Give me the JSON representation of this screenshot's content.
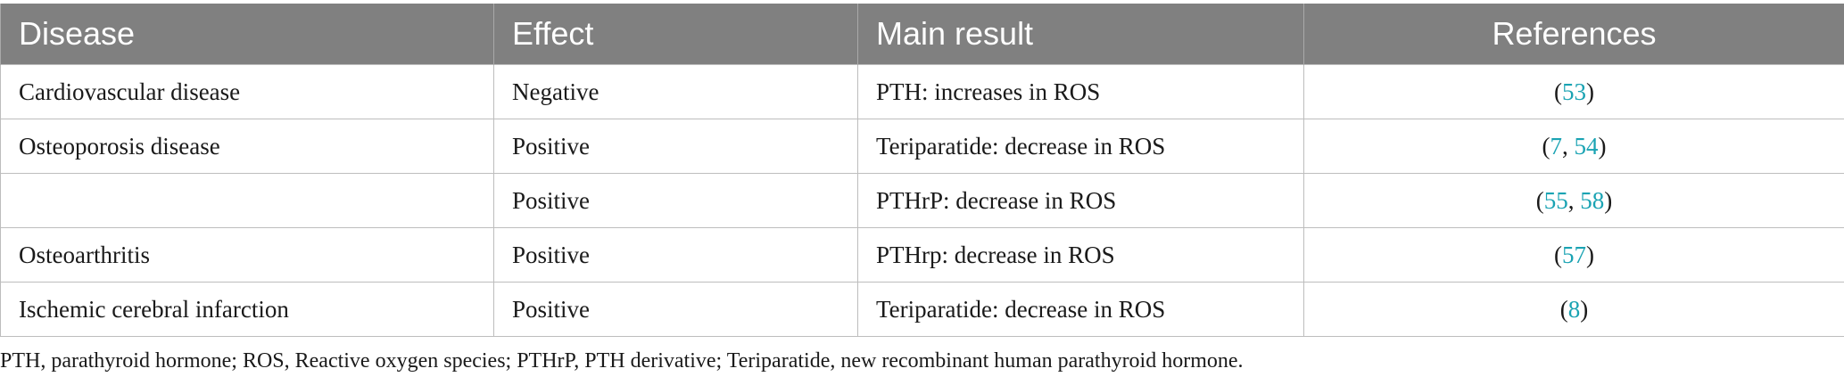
{
  "table": {
    "headers": [
      "Disease",
      "Effect",
      "Main result",
      "References"
    ],
    "rows": [
      {
        "disease": "Cardiovascular disease",
        "effect": "Negative",
        "result": "PTH: increases in ROS",
        "refs": [
          "53"
        ]
      },
      {
        "disease": "Osteoporosis disease",
        "effect": "Positive",
        "result": "Teriparatide: decrease in ROS",
        "refs": [
          "7",
          "54"
        ]
      },
      {
        "disease": "",
        "effect": "Positive",
        "result": "PTHrP: decrease in ROS",
        "refs": [
          "55",
          "58"
        ]
      },
      {
        "disease": "Osteoarthritis",
        "effect": "Positive",
        "result": "PTHrp: decrease in ROS",
        "refs": [
          "57"
        ]
      },
      {
        "disease": "Ischemic cerebral infarction",
        "effect": "Positive",
        "result": "Teriparatide: decrease in ROS",
        "refs": [
          "8"
        ]
      }
    ]
  },
  "footnote": "PTH, parathyroid hormone; ROS, Reactive oxygen species; PTHrP, PTH derivative; Teriparatide, new recombinant human parathyroid hormone.",
  "colors": {
    "header_bg": "#808080",
    "header_text": "#ffffff",
    "link": "#1aa3b3",
    "border": "#bdbdbd"
  }
}
